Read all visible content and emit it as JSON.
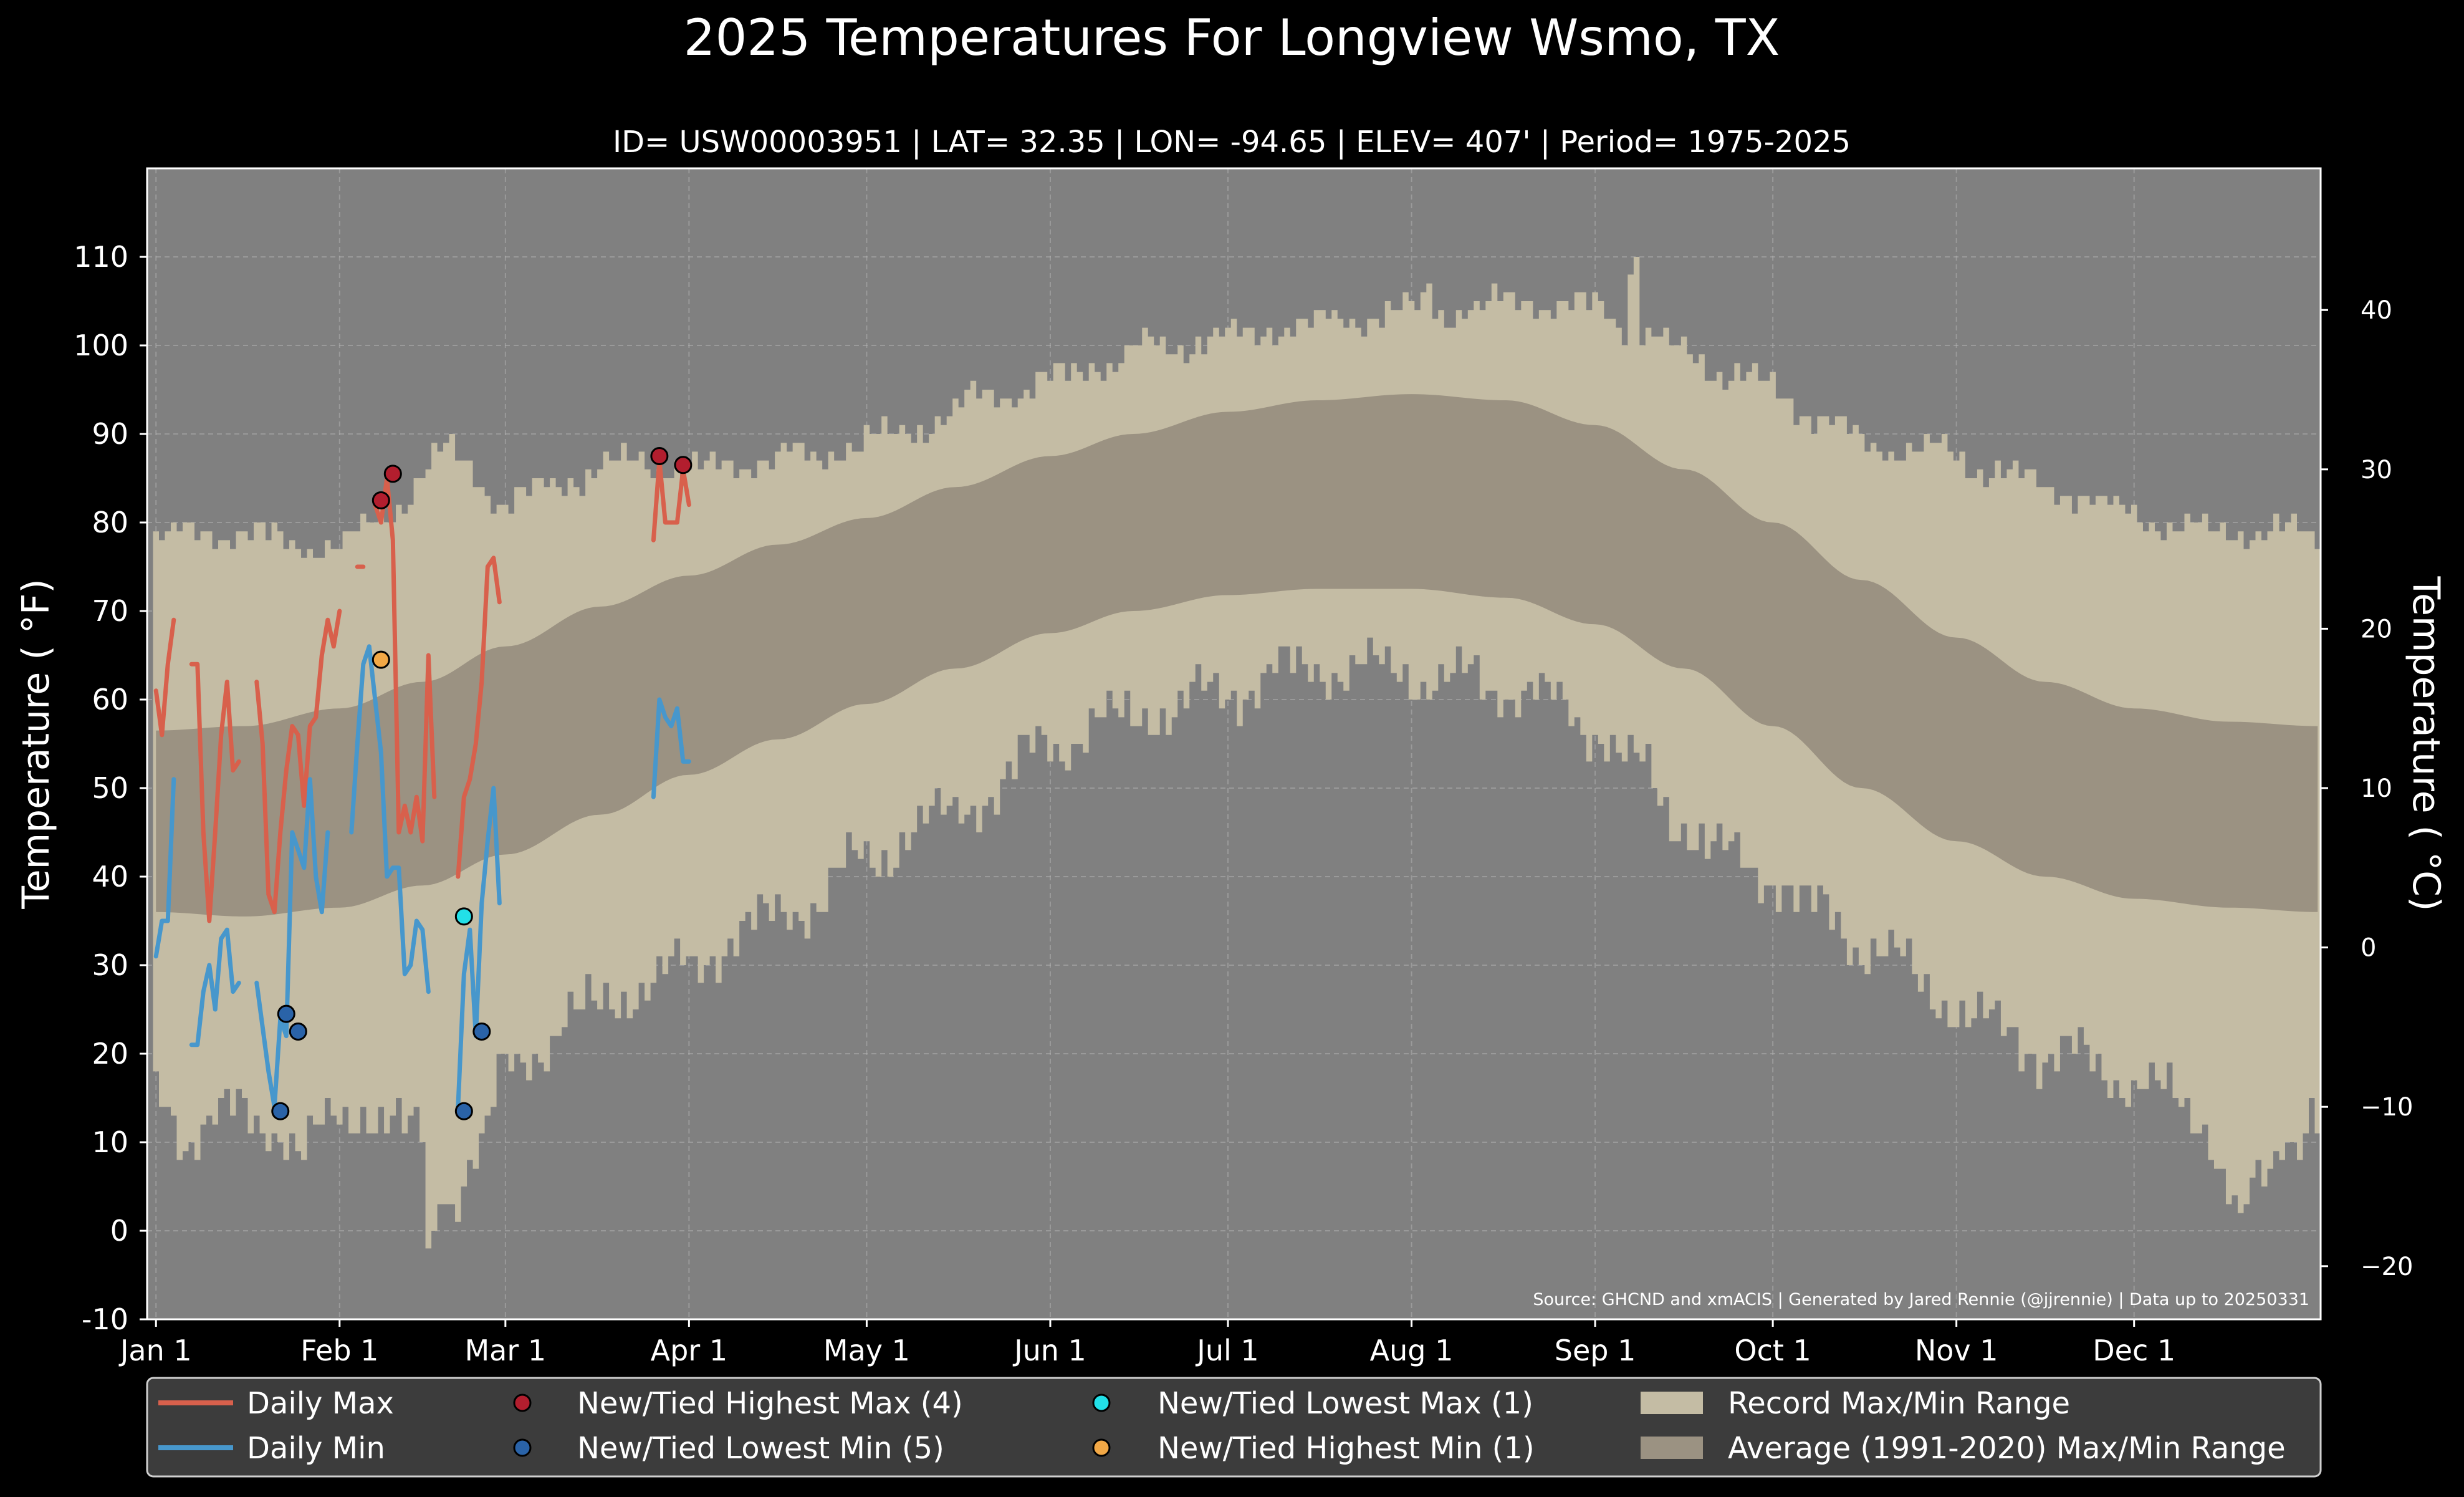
{
  "header": {
    "title": "2025 Temperatures For Longview Wsmo, TX",
    "subtitle": "ID= USW00003951 | LAT= 32.35 | LON= -94.65 | ELEV= 407' | Period= 1975-2025"
  },
  "source_note": "Source: GHCND and xmACIS | Generated by Jared Rennie (@jjrennie) | Data up to 20250331",
  "colors": {
    "background": "#000000",
    "plot_bg": "#808080",
    "record_range": "#c4bca4",
    "normal_range": "#9b9282",
    "daily_max": "#d8604c",
    "daily_min": "#4797cc",
    "new_high_max": "#b21e2e",
    "new_low_min": "#2a63a8",
    "new_low_max": "#22e0e8",
    "new_high_min": "#f2a846",
    "legend_bg": "#3c3c3c"
  },
  "legend": {
    "daily_max": "Daily Max",
    "daily_min": "Daily Min",
    "new_high_max": "New/Tied Highest Max (4)",
    "new_low_min": "New/Tied Lowest Min (5)",
    "new_low_max": "New/Tied Lowest Max (1)",
    "new_high_min": "New/Tied Highest Min (1)",
    "record_range": "Record Max/Min Range",
    "normal_range": "Average (1991-2020) Max/Min Range"
  },
  "chart_data": {
    "type": "line",
    "ylabel": "Temperature ( $^\\circ$F)",
    "ylabel_display": "Temperature ( °F)",
    "y2label_display": "Temperature ( °C)",
    "ylim": [
      -10,
      120
    ],
    "yticks": [
      -10,
      0,
      10,
      20,
      30,
      40,
      50,
      60,
      70,
      80,
      90,
      100,
      110
    ],
    "y2ticks": [
      -20,
      -10,
      0,
      10,
      20,
      30,
      40
    ],
    "xlim": [
      -1.5,
      365.5
    ],
    "xticks": [
      {
        "label": "Jan 1",
        "day": 0
      },
      {
        "label": "Feb 1",
        "day": 31
      },
      {
        "label": "Mar 1",
        "day": 59
      },
      {
        "label": "Apr 1",
        "day": 90
      },
      {
        "label": "May 1",
        "day": 120
      },
      {
        "label": "Jun 1",
        "day": 151
      },
      {
        "label": "Jul 1",
        "day": 181
      },
      {
        "label": "Aug 1",
        "day": 212
      },
      {
        "label": "Sep 1",
        "day": 243
      },
      {
        "label": "Oct 1",
        "day": 273
      },
      {
        "label": "Nov 1",
        "day": 304
      },
      {
        "label": "Dec 1",
        "day": 334
      }
    ],
    "grid": true,
    "legend_position": "bottom",
    "normal_max_knots": [
      [
        0,
        56.5
      ],
      [
        15,
        57
      ],
      [
        31,
        59
      ],
      [
        45,
        62
      ],
      [
        59,
        66
      ],
      [
        75,
        70.5
      ],
      [
        90,
        74
      ],
      [
        105,
        77.5
      ],
      [
        120,
        80.5
      ],
      [
        135,
        84
      ],
      [
        151,
        87.5
      ],
      [
        165,
        90
      ],
      [
        181,
        92.5
      ],
      [
        196,
        93.8
      ],
      [
        212,
        94.5
      ],
      [
        228,
        93.8
      ],
      [
        243,
        91
      ],
      [
        258,
        86
      ],
      [
        273,
        80
      ],
      [
        288,
        73.5
      ],
      [
        304,
        67
      ],
      [
        319,
        62
      ],
      [
        334,
        59
      ],
      [
        350,
        57.5
      ],
      [
        365,
        57
      ]
    ],
    "normal_min_knots": [
      [
        0,
        36
      ],
      [
        15,
        35.5
      ],
      [
        31,
        36.5
      ],
      [
        45,
        39
      ],
      [
        59,
        42.5
      ],
      [
        75,
        47
      ],
      [
        90,
        51.5
      ],
      [
        105,
        55.5
      ],
      [
        120,
        59.5
      ],
      [
        135,
        63.5
      ],
      [
        151,
        67.5
      ],
      [
        165,
        70
      ],
      [
        181,
        71.8
      ],
      [
        196,
        72.5
      ],
      [
        212,
        72.5
      ],
      [
        228,
        71.5
      ],
      [
        243,
        68.5
      ],
      [
        258,
        63.5
      ],
      [
        273,
        57
      ],
      [
        288,
        50
      ],
      [
        304,
        44
      ],
      [
        319,
        40
      ],
      [
        334,
        37.5
      ],
      [
        350,
        36.5
      ],
      [
        365,
        36
      ]
    ],
    "record_max_knots": [
      [
        0,
        78
      ],
      [
        10,
        79
      ],
      [
        20,
        78
      ],
      [
        31,
        77
      ],
      [
        40,
        82
      ],
      [
        50,
        88
      ],
      [
        59,
        82
      ],
      [
        70,
        85
      ],
      [
        80,
        87
      ],
      [
        90,
        86
      ],
      [
        100,
        87
      ],
      [
        110,
        87.5
      ],
      [
        120,
        89
      ],
      [
        130,
        91
      ],
      [
        140,
        94
      ],
      [
        151,
        96
      ],
      [
        160,
        98
      ],
      [
        170,
        100
      ],
      [
        181,
        101
      ],
      [
        190,
        102
      ],
      [
        200,
        103
      ],
      [
        212,
        104
      ],
      [
        220,
        104
      ],
      [
        230,
        105
      ],
      [
        243,
        104
      ],
      [
        250,
        102
      ],
      [
        258,
        99
      ],
      [
        265,
        97
      ],
      [
        273,
        95
      ],
      [
        280,
        92
      ],
      [
        290,
        89
      ],
      [
        300,
        88
      ],
      [
        310,
        86
      ],
      [
        320,
        84
      ],
      [
        334,
        81
      ],
      [
        345,
        79
      ],
      [
        355,
        79
      ],
      [
        365,
        79
      ]
    ],
    "record_min_knots": [
      [
        0,
        15
      ],
      [
        5,
        11
      ],
      [
        10,
        13
      ],
      [
        20,
        12
      ],
      [
        25,
        9
      ],
      [
        30,
        12
      ],
      [
        35,
        14
      ],
      [
        45,
        10
      ],
      [
        50,
        4
      ],
      [
        55,
        9
      ],
      [
        59,
        18
      ],
      [
        65,
        21
      ],
      [
        70,
        24
      ],
      [
        80,
        27
      ],
      [
        90,
        30
      ],
      [
        100,
        34
      ],
      [
        110,
        37
      ],
      [
        120,
        42
      ],
      [
        130,
        46
      ],
      [
        140,
        49
      ],
      [
        151,
        55
      ],
      [
        160,
        57
      ],
      [
        170,
        59
      ],
      [
        181,
        61
      ],
      [
        190,
        63
      ],
      [
        200,
        64
      ],
      [
        212,
        63
      ],
      [
        220,
        62
      ],
      [
        230,
        61
      ],
      [
        243,
        57
      ],
      [
        250,
        52
      ],
      [
        258,
        46
      ],
      [
        265,
        42
      ],
      [
        273,
        40
      ],
      [
        280,
        36
      ],
      [
        290,
        32
      ],
      [
        300,
        27
      ],
      [
        310,
        23
      ],
      [
        320,
        20
      ],
      [
        334,
        17
      ],
      [
        345,
        13
      ],
      [
        352,
        3
      ],
      [
        356,
        5
      ],
      [
        360,
        11
      ],
      [
        365,
        13
      ]
    ],
    "record_max_spikes": [
      [
        250,
        110
      ],
      [
        249,
        108
      ],
      [
        215,
        107
      ]
    ],
    "record_min_spikes": [
      [
        46,
        -2
      ],
      [
        47,
        0
      ],
      [
        352,
        2
      ],
      [
        353,
        3
      ],
      [
        364,
        15
      ]
    ],
    "series": [
      {
        "name": "Daily Max",
        "segments": [
          [
            [
              0,
              61
            ],
            [
              1,
              56
            ],
            [
              2,
              64
            ],
            [
              3,
              69
            ]
          ],
          [
            [
              6,
              64
            ],
            [
              7,
              64
            ],
            [
              8,
              45
            ],
            [
              9,
              35
            ],
            [
              10,
              45
            ],
            [
              11,
              56
            ],
            [
              12,
              62
            ],
            [
              13,
              52
            ],
            [
              14,
              53
            ]
          ],
          [
            [
              17,
              62
            ],
            [
              18,
              55
            ],
            [
              19,
              38
            ],
            [
              20,
              36
            ],
            [
              21,
              45
            ],
            [
              22,
              52
            ],
            [
              23,
              57
            ],
            [
              24,
              56
            ],
            [
              25,
              48
            ],
            [
              26,
              57
            ],
            [
              27,
              58
            ],
            [
              28,
              65
            ],
            [
              29,
              69
            ],
            [
              30,
              66
            ],
            [
              31,
              70
            ]
          ],
          [
            [
              34,
              75
            ],
            [
              35,
              75
            ]
          ],
          [
            [
              37,
              82
            ],
            [
              38,
              80
            ],
            [
              39,
              85
            ],
            [
              40,
              78
            ],
            [
              41,
              45
            ],
            [
              42,
              48
            ],
            [
              43,
              45
            ],
            [
              44,
              49
            ],
            [
              45,
              44
            ],
            [
              46,
              65
            ],
            [
              47,
              49
            ]
          ],
          [
            [
              51,
              40
            ],
            [
              52,
              49
            ],
            [
              53,
              51
            ],
            [
              54,
              55
            ],
            [
              55,
              62
            ],
            [
              56,
              75
            ],
            [
              57,
              76
            ],
            [
              58,
              71
            ]
          ],
          [
            [
              84,
              78
            ],
            [
              85,
              87
            ],
            [
              86,
              80
            ],
            [
              87,
              80
            ],
            [
              88,
              80
            ],
            [
              89,
              86
            ],
            [
              90,
              82
            ]
          ]
        ]
      },
      {
        "name": "Daily Min",
        "segments": [
          [
            [
              0,
              31
            ],
            [
              1,
              35
            ],
            [
              2,
              35
            ],
            [
              3,
              51
            ]
          ],
          [
            [
              6,
              21
            ],
            [
              7,
              21
            ],
            [
              8,
              27
            ],
            [
              9,
              30
            ],
            [
              10,
              25
            ],
            [
              11,
              33
            ],
            [
              12,
              34
            ],
            [
              13,
              27
            ],
            [
              14,
              28
            ]
          ],
          [
            [
              17,
              28
            ],
            [
              18,
              23
            ],
            [
              19,
              18
            ],
            [
              20,
              14
            ],
            [
              21,
              24
            ],
            [
              22,
              22
            ],
            [
              23,
              45
            ],
            [
              24,
              43
            ],
            [
              25,
              41
            ],
            [
              26,
              51
            ],
            [
              27,
              40
            ],
            [
              28,
              36
            ],
            [
              29,
              45
            ]
          ],
          [
            [
              33,
              45
            ],
            [
              34,
              55
            ],
            [
              35,
              64
            ],
            [
              36,
              66
            ],
            [
              37,
              60
            ],
            [
              38,
              54
            ],
            [
              39,
              40
            ],
            [
              40,
              41
            ],
            [
              41,
              41
            ],
            [
              42,
              29
            ],
            [
              43,
              30
            ],
            [
              44,
              35
            ],
            [
              45,
              34
            ],
            [
              46,
              27
            ]
          ],
          [
            [
              51,
              14
            ],
            [
              52,
              29
            ],
            [
              53,
              34
            ],
            [
              54,
              22
            ],
            [
              55,
              37
            ],
            [
              56,
              44
            ],
            [
              57,
              50
            ],
            [
              58,
              37
            ]
          ],
          [
            [
              84,
              49
            ],
            [
              85,
              60
            ],
            [
              86,
              58
            ],
            [
              87,
              57
            ],
            [
              88,
              59
            ],
            [
              89,
              53
            ],
            [
              90,
              53
            ]
          ]
        ]
      }
    ],
    "markers": {
      "new_high_max": [
        [
          38,
          82.5
        ],
        [
          40,
          85.5
        ],
        [
          85,
          87.5
        ],
        [
          89,
          86.5
        ]
      ],
      "new_low_min": [
        [
          21,
          13.5
        ],
        [
          22,
          24.5
        ],
        [
          24,
          22.5
        ],
        [
          52,
          13.5
        ],
        [
          55,
          22.5
        ]
      ],
      "new_low_max": [
        [
          52,
          35.5
        ]
      ],
      "new_high_min": [
        [
          38,
          64.5
        ]
      ]
    }
  }
}
